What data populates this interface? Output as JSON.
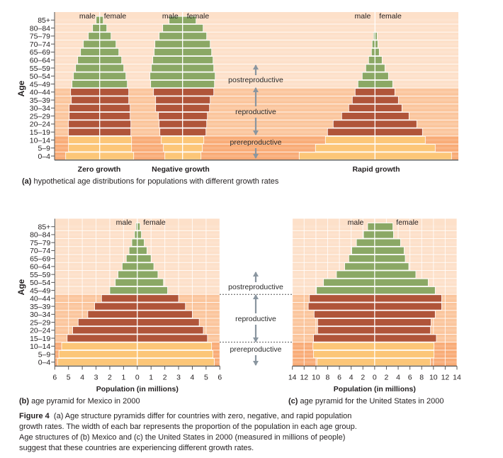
{
  "colors": {
    "postreproductive_bar": "#8ba865",
    "reproductive_bar": "#b0553a",
    "prereproductive_bar": "#fcc678",
    "postreproductive_bg": "#fde0c9",
    "reproductive_bg": "#fbc59c",
    "prereproductive_bg": "#f9ab76",
    "arrow": "#8a96a0"
  },
  "labels": {
    "age_axis": "Age",
    "male": "male",
    "female": "female",
    "postreproductive": "postreproductive",
    "reproductive": "reproductive",
    "prereproductive": "prereproductive",
    "population_axis": "Population (in millions)"
  },
  "captions": {
    "a_bold": "(a)",
    "a_text": " hypothetical age distributions for populations with different growth rates",
    "b_bold": "(b)",
    "b_text": " age pyramid for Mexico in 2000",
    "c_bold": "(c)",
    "c_text": " age pyramid for the United States in 2000",
    "figure_bold": "Figure 4",
    "figure_lines": [
      "  (a) Age structure pyramids differ for countries with zero, negative, and rapid population",
      "growth rates. The width of each bar represents the proportion of the population in each age group.",
      "Age structures of (b) Mexico and (c) the United States in 2000 (measured in millions of people)",
      "suggest that these countries are experiencing different growth rates."
    ]
  },
  "chart_data": [
    {
      "type": "bar",
      "subtype": "population-pyramid",
      "panel": "a",
      "ylabel": "Age",
      "age_groups": [
        "85+",
        "80–84",
        "75–79",
        "70–74",
        "65–69",
        "60–64",
        "55–59",
        "50–54",
        "45–49",
        "40–44",
        "35–39",
        "30–34",
        "25–29",
        "20–24",
        "15–19",
        "10–14",
        "5–9",
        "0–4"
      ],
      "stage_groups": {
        "postreproductive": [
          "85+",
          "45–49"
        ],
        "reproductive": [
          "40–44",
          "15–19"
        ],
        "prereproductive": [
          "10–14",
          "0–4"
        ]
      },
      "value_unit": "relative width (no axis printed)",
      "pyramids": [
        {
          "name": "Zero growth",
          "male": [
            5,
            10,
            16,
            23,
            27,
            31,
            34,
            37,
            39,
            41,
            40,
            43,
            43,
            44,
            44,
            44,
            44,
            48
          ],
          "female": [
            5,
            10,
            16,
            23,
            27,
            31,
            34,
            37,
            39,
            41,
            41,
            43,
            43,
            44,
            44,
            45,
            45,
            48
          ]
        },
        {
          "name": "Negative growth",
          "male": [
            19,
            28,
            33,
            39,
            40,
            42,
            44,
            46,
            45,
            41,
            38,
            38,
            34,
            33,
            32,
            30,
            27,
            25
          ],
          "female": [
            19,
            29,
            34,
            39,
            41,
            43,
            44,
            46,
            45,
            44,
            39,
            38,
            35,
            34,
            33,
            30,
            28,
            26
          ]
        },
        {
          "name": "Rapid growth",
          "male": [
            0,
            0,
            2,
            4,
            5,
            9,
            13,
            18,
            24,
            28,
            32,
            37,
            47,
            59,
            67,
            70,
            84,
            107
          ],
          "female": [
            0,
            0,
            3,
            4,
            6,
            10,
            14,
            19,
            25,
            28,
            33,
            38,
            48,
            59,
            67,
            71,
            85,
            108
          ]
        }
      ]
    },
    {
      "type": "bar",
      "subtype": "population-pyramid",
      "panel": "b",
      "ylabel": "Age",
      "xlabel": "Population (in millions)",
      "xlim": [
        -6,
        6
      ],
      "xticks": [
        "6",
        "5",
        "4",
        "3",
        "2",
        "1",
        "0",
        "1",
        "2",
        "3",
        "4",
        "5",
        "6"
      ],
      "grid": true,
      "male": [
        0.1,
        0.2,
        0.4,
        0.6,
        0.8,
        1.1,
        1.4,
        1.6,
        2.0,
        2.6,
        3.1,
        3.6,
        4.3,
        4.7,
        5.1,
        5.5,
        5.7,
        5.8
      ],
      "female": [
        0.2,
        0.3,
        0.5,
        0.7,
        1.0,
        1.2,
        1.5,
        1.9,
        2.2,
        3.0,
        3.5,
        4.0,
        4.5,
        4.8,
        5.1,
        5.4,
        5.5,
        5.6
      ]
    },
    {
      "type": "bar",
      "subtype": "population-pyramid",
      "panel": "c",
      "xlabel": "Population (in millions)",
      "xlim": [
        -14,
        14
      ],
      "xticks": [
        "14",
        "12",
        "10",
        "8",
        "6",
        "4",
        "2",
        "0",
        "2",
        "4",
        "6",
        "8",
        "10",
        "12",
        "14"
      ],
      "grid": true,
      "male": [
        1.2,
        1.9,
        3.1,
        3.9,
        4.4,
        5.1,
        6.5,
        8.7,
        9.9,
        11.1,
        11.3,
        10.3,
        9.7,
        9.7,
        10.4,
        10.5,
        10.4,
        9.8
      ],
      "female": [
        3.1,
        3.2,
        4.4,
        5.0,
        5.2,
        5.8,
        7.0,
        9.1,
        10.3,
        11.4,
        11.4,
        10.3,
        9.6,
        9.5,
        10.5,
        10.1,
        10.1,
        9.5
      ]
    }
  ]
}
